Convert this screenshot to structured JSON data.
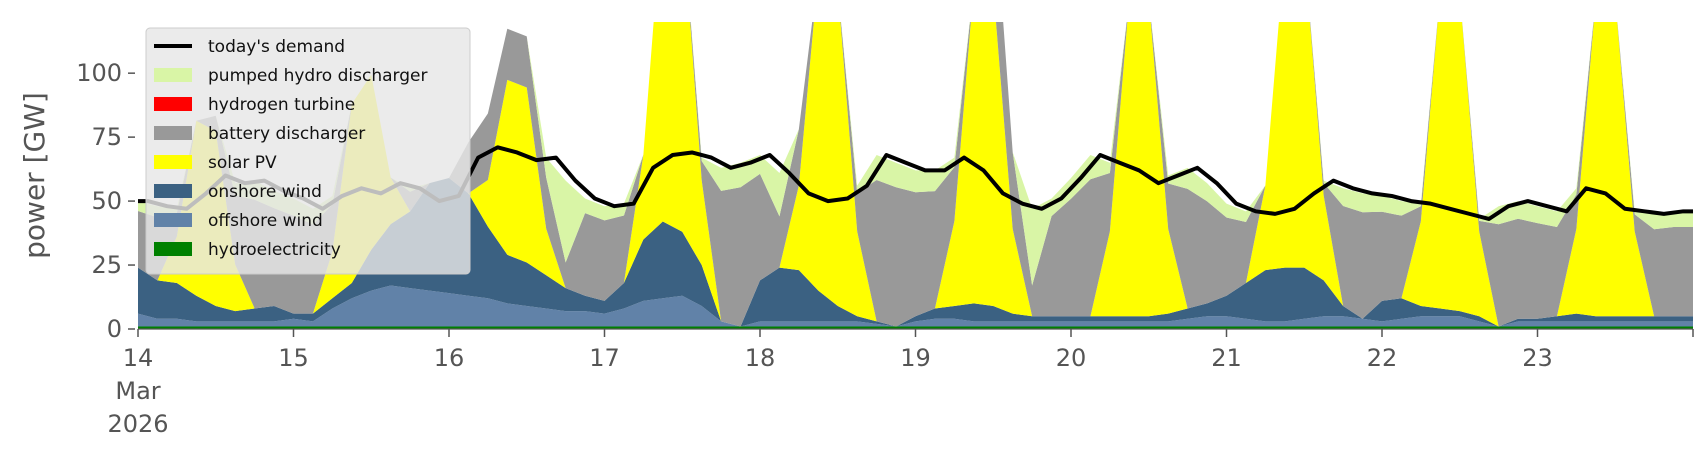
{
  "chart_data": {
    "type": "area",
    "ylabel": "power [GW]",
    "ylim": [
      0,
      120
    ],
    "yticks": [
      0,
      25,
      50,
      75,
      100
    ],
    "xlim": [
      "2026-03-14 00:00",
      "2026-03-24 00:00"
    ],
    "xtick_labels": [
      "14",
      "15",
      "16",
      "17",
      "18",
      "19",
      "20",
      "21",
      "22",
      "23"
    ],
    "xtick_sublabel": [
      "Mar",
      "2026"
    ],
    "resolution_hours": 3,
    "grid": false,
    "legend_position": "top-left",
    "legend": [
      {
        "name": "today's demand",
        "color": "#000000",
        "kind": "line"
      },
      {
        "name": "pumped hydro discharger",
        "color": "#d9f5a6",
        "kind": "patch"
      },
      {
        "name": "hydrogen turbine",
        "color": "#ff0000",
        "kind": "patch"
      },
      {
        "name": "battery discharger",
        "color": "#999999",
        "kind": "patch"
      },
      {
        "name": "solar PV",
        "color": "#ffff00",
        "kind": "patch"
      },
      {
        "name": "onshore wind",
        "color": "#3b6182",
        "kind": "patch"
      },
      {
        "name": "offshore wind",
        "color": "#6182a8",
        "kind": "patch"
      },
      {
        "name": "hydroelectricity",
        "color": "#008000",
        "kind": "patch"
      }
    ],
    "series": [
      {
        "name": "hydroelectricity",
        "color": "#008000",
        "values": [
          1,
          1,
          1,
          1,
          1,
          1,
          1,
          1,
          1,
          1,
          1,
          1,
          1,
          1,
          1,
          1,
          1,
          1,
          1,
          1,
          1,
          1,
          1,
          1,
          1,
          1,
          1,
          1,
          1,
          1,
          1,
          1,
          1,
          1,
          1,
          1,
          1,
          1,
          1,
          1,
          1,
          1,
          1,
          1,
          1,
          1,
          1,
          1,
          1,
          1,
          1,
          1,
          1,
          1,
          1,
          1,
          1,
          1,
          1,
          1,
          1,
          1,
          1,
          1,
          1,
          1,
          1,
          1,
          1,
          1,
          1,
          1,
          1,
          1,
          1,
          1,
          1,
          1,
          1,
          1
        ]
      },
      {
        "name": "offshore wind",
        "color": "#6182a8",
        "values": [
          5,
          3,
          3,
          2,
          2,
          2,
          2,
          2,
          3,
          2,
          7,
          11,
          14,
          16,
          15,
          14,
          13,
          12,
          11,
          9,
          8,
          7,
          6,
          6,
          5,
          7,
          10,
          11,
          12,
          8,
          2,
          0,
          2,
          2,
          2,
          2,
          2,
          2,
          1,
          0,
          2,
          3,
          3,
          2,
          2,
          2,
          2,
          2,
          2,
          2,
          2,
          2,
          2,
          2,
          3,
          4,
          4,
          3,
          2,
          2,
          3,
          4,
          4,
          3,
          2,
          3,
          4,
          4,
          4,
          2,
          0,
          2,
          2,
          2,
          2,
          2,
          2,
          2,
          2,
          2
        ]
      },
      {
        "name": "onshore wind",
        "color": "#3b6182",
        "values": [
          18,
          15,
          14,
          10,
          6,
          4,
          5,
          6,
          2,
          3,
          4,
          6,
          16,
          24,
          30,
          42,
          45,
          40,
          28,
          19,
          17,
          13,
          9,
          6,
          5,
          10,
          24,
          30,
          25,
          16,
          0,
          0,
          16,
          21,
          20,
          12,
          6,
          2,
          1,
          0,
          2,
          4,
          5,
          7,
          6,
          3,
          2,
          2,
          2,
          2,
          2,
          2,
          2,
          3,
          4,
          5,
          8,
          14,
          20,
          21,
          20,
          14,
          4,
          0,
          8,
          8,
          4,
          3,
          2,
          2,
          0,
          1,
          1,
          2,
          3,
          2,
          2,
          2,
          2,
          2
        ]
      },
      {
        "name": "solar PV",
        "color": "#ffff00",
        "values": [
          0,
          0,
          0,
          40,
          0,
          0,
          0,
          0,
          0,
          0,
          0,
          70,
          0,
          0,
          0,
          0,
          0,
          0,
          0,
          2,
          0,
          0,
          0,
          0,
          0,
          0,
          0,
          0,
          0,
          0,
          0,
          0,
          0,
          0,
          0,
          0,
          0,
          0,
          0,
          0,
          0,
          0,
          0,
          0,
          0,
          0,
          0,
          0,
          0,
          0,
          0,
          0,
          0,
          0,
          0,
          0,
          0,
          0,
          0,
          0,
          0,
          0,
          0,
          0,
          0,
          0,
          0,
          0,
          0,
          0,
          0,
          0,
          0,
          0,
          0,
          0,
          0,
          0,
          0,
          0
        ]
      },
      {
        "name": "battery discharger",
        "color": "#999999",
        "values": [
          0,
          0,
          0,
          0,
          6,
          0,
          0,
          0,
          0,
          0,
          0,
          0,
          0,
          0,
          0,
          0,
          0,
          20,
          26,
          20,
          20,
          20,
          10,
          0,
          0,
          0,
          0,
          0,
          0,
          0,
          0,
          0,
          0,
          20,
          22,
          0,
          0,
          0,
          0,
          0,
          0,
          0,
          0,
          0,
          40,
          30,
          12,
          0,
          0,
          0,
          0,
          0,
          0,
          0,
          0,
          0,
          0,
          0,
          0,
          0,
          0,
          0,
          0,
          0,
          0,
          0,
          0,
          0,
          0,
          0,
          0,
          0,
          0,
          0,
          0,
          0,
          0,
          0,
          0,
          0
        ]
      },
      {
        "name": "hydrogen turbine",
        "color": "#ff0000",
        "values": [
          0,
          0,
          0,
          0,
          0,
          0,
          0,
          0,
          0,
          0,
          0,
          0,
          0,
          0,
          0,
          0,
          0,
          0,
          0,
          0,
          0,
          0,
          0,
          0,
          0,
          0,
          0,
          0,
          0,
          0,
          0,
          0,
          0,
          0,
          0,
          0,
          0,
          0,
          0,
          0,
          0,
          0,
          0,
          0,
          0,
          0,
          0,
          0,
          0,
          0,
          0,
          0,
          0,
          0,
          0,
          0,
          0,
          0,
          0,
          0,
          0,
          0,
          0,
          0,
          0,
          0,
          0,
          0,
          0,
          0,
          0,
          0,
          0,
          0,
          0,
          0,
          0,
          0,
          0,
          0
        ]
      },
      {
        "name": "pumped hydro discharger",
        "color": "#d9f5a6",
        "values": [
          0,
          0,
          0,
          0,
          0,
          0,
          0,
          0,
          0,
          0,
          0,
          0,
          0,
          0,
          0,
          0,
          0,
          0,
          0,
          0,
          0,
          0,
          0,
          0,
          0,
          0,
          0,
          0,
          0,
          0,
          0,
          0,
          0,
          0,
          0,
          0,
          0,
          0,
          0,
          0,
          0,
          0,
          0,
          0,
          0,
          0,
          0,
          0,
          0,
          0,
          0,
          0,
          0,
          0,
          0,
          0,
          0,
          0,
          0,
          0,
          0,
          0,
          0,
          0,
          0,
          0,
          0,
          0,
          0,
          0,
          0,
          0,
          0,
          0,
          0,
          0,
          0,
          0,
          0,
          0
        ]
      }
    ],
    "demand": {
      "name": "today's demand",
      "color": "#000000",
      "values": [
        50,
        48,
        47,
        53,
        60,
        57,
        58,
        54,
        51,
        47,
        52,
        55,
        53,
        57,
        55,
        50,
        52,
        67,
        71,
        69,
        66,
        67,
        58,
        51,
        48,
        49,
        63,
        68,
        69,
        67,
        63,
        65,
        68,
        61,
        53,
        50,
        51,
        56,
        68,
        65,
        62,
        62,
        67,
        62,
        53,
        49,
        47,
        51,
        59,
        68,
        65,
        62,
        57,
        60,
        63,
        57,
        49,
        46,
        45,
        47,
        53,
        58,
        55,
        53,
        52,
        50,
        49,
        47,
        45,
        43,
        48,
        50,
        48,
        46,
        55,
        53,
        47,
        46,
        45,
        46
      ]
    }
  }
}
